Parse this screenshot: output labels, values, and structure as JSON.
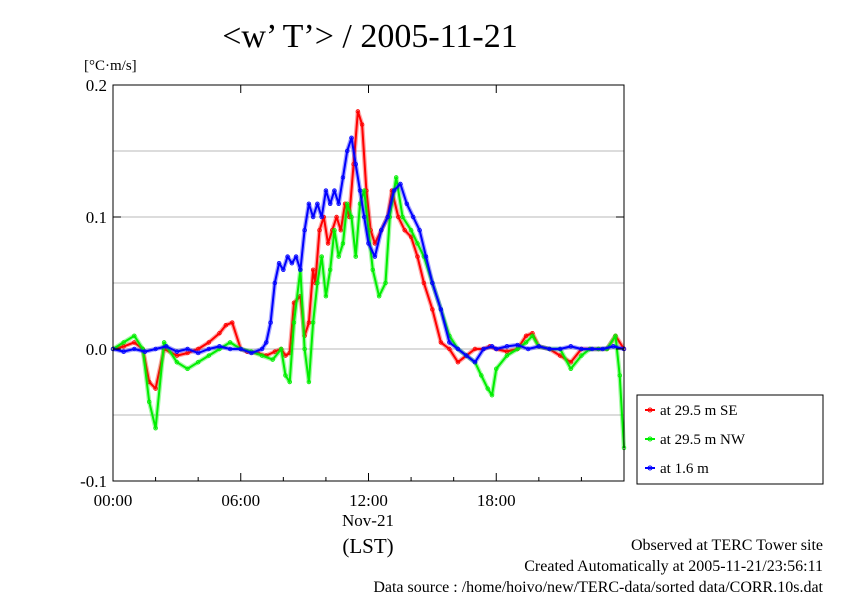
{
  "chart_data": {
    "type": "line",
    "title": "<w’ T’> / 2005-11-21",
    "ylabel": "[°C·m/s]",
    "xlabel": "(LST)",
    "xlim": [
      0,
      24
    ],
    "ylim": [
      -0.1,
      0.2
    ],
    "x_ticks": [
      {
        "value": 0,
        "label": "00:00"
      },
      {
        "value": 6,
        "label": "06:00"
      },
      {
        "value": 12,
        "label": "12:00"
      },
      {
        "value": 18,
        "label": "18:00"
      }
    ],
    "x_sublabel": {
      "value": 12,
      "label": "Nov-21"
    },
    "y_ticks": [
      {
        "value": -0.1,
        "label": "-0.1"
      },
      {
        "value": 0.0,
        "label": "0.0"
      },
      {
        "value": 0.1,
        "label": "0.1"
      },
      {
        "value": 0.2,
        "label": "0.2"
      }
    ],
    "y_gridlines": [
      -0.05,
      0.0,
      0.05,
      0.1,
      0.15
    ],
    "legend_position": "right-bottom",
    "series": [
      {
        "name": "at 29.5 m SE",
        "color": "#ff0000",
        "x": [
          0,
          0.5,
          1,
          1.4,
          1.7,
          2,
          2.4,
          3,
          3.5,
          4,
          4.5,
          5,
          5.3,
          5.6,
          6,
          6.3,
          6.8,
          7.2,
          7.6,
          7.9,
          8.1,
          8.3,
          8.5,
          8.8,
          9,
          9.2,
          9.4,
          9.5,
          9.7,
          9.9,
          10.1,
          10.3,
          10.5,
          10.7,
          10.9,
          11.1,
          11.3,
          11.5,
          11.7,
          11.9,
          12.1,
          12.3,
          12.6,
          12.9,
          13.1,
          13.4,
          13.7,
          14,
          14.3,
          14.6,
          15,
          15.4,
          15.8,
          16.2,
          16.6,
          17,
          17.4,
          17.7,
          18,
          18.5,
          19,
          19.4,
          19.7,
          20,
          20.5,
          21,
          21.5,
          22,
          22.4,
          22.8,
          23.2,
          23.6,
          24
        ],
        "y": [
          0.0,
          0.002,
          0.005,
          0.0,
          -0.025,
          -0.03,
          0.0,
          -0.005,
          -0.003,
          0.0,
          0.005,
          0.012,
          0.018,
          0.02,
          0.0,
          -0.002,
          -0.003,
          -0.005,
          -0.002,
          0.0,
          -0.005,
          -0.003,
          0.035,
          0.04,
          0.01,
          0.02,
          0.06,
          0.05,
          0.09,
          0.1,
          0.08,
          0.09,
          0.1,
          0.09,
          0.11,
          0.1,
          0.14,
          0.18,
          0.17,
          0.12,
          0.09,
          0.08,
          0.09,
          0.1,
          0.12,
          0.1,
          0.09,
          0.085,
          0.07,
          0.05,
          0.03,
          0.005,
          0.0,
          -0.01,
          -0.005,
          0.0,
          0.0,
          0.002,
          0.0,
          -0.002,
          0.0,
          0.01,
          0.012,
          0.002,
          0.0,
          -0.005,
          -0.01,
          0.0,
          0.0,
          0.0,
          0.0,
          0.01,
          0.0
        ]
      },
      {
        "name": "at 29.5 m NW",
        "color": "#00ee00",
        "x": [
          0,
          0.5,
          1,
          1.4,
          1.7,
          2,
          2.4,
          3,
          3.5,
          4,
          4.5,
          5,
          5.5,
          6,
          6.5,
          7,
          7.5,
          7.9,
          8.1,
          8.3,
          8.5,
          8.8,
          9,
          9.2,
          9.4,
          9.6,
          9.8,
          10,
          10.2,
          10.4,
          10.6,
          10.8,
          11,
          11.2,
          11.4,
          11.6,
          11.8,
          12,
          12.2,
          12.5,
          12.8,
          13,
          13.3,
          13.6,
          14,
          14.3,
          14.6,
          15,
          15.4,
          15.8,
          16.2,
          16.6,
          17,
          17.3,
          17.6,
          17.8,
          18,
          18.5,
          19,
          19.4,
          19.7,
          20,
          20.5,
          21,
          21.5,
          22,
          22.4,
          22.8,
          23.2,
          23.6,
          23.8,
          24
        ],
        "y": [
          0.0,
          0.005,
          0.01,
          0.0,
          -0.04,
          -0.06,
          0.005,
          -0.01,
          -0.015,
          -0.01,
          -0.005,
          0.0,
          0.005,
          0.0,
          -0.002,
          -0.005,
          -0.008,
          0.0,
          -0.02,
          -0.025,
          0.02,
          0.06,
          0.0,
          -0.025,
          0.02,
          0.05,
          0.07,
          0.04,
          0.06,
          0.09,
          0.07,
          0.08,
          0.11,
          0.1,
          0.07,
          0.11,
          0.12,
          0.09,
          0.06,
          0.04,
          0.05,
          0.1,
          0.13,
          0.1,
          0.09,
          0.08,
          0.07,
          0.05,
          0.03,
          0.01,
          0.0,
          -0.005,
          -0.01,
          -0.02,
          -0.03,
          -0.035,
          -0.015,
          -0.005,
          0.0,
          0.005,
          0.01,
          0.002,
          0.0,
          0.0,
          -0.015,
          -0.005,
          0.0,
          0.0,
          0.0,
          0.01,
          -0.02,
          -0.075
        ]
      },
      {
        "name": "at 1.6 m",
        "color": "#0000ff",
        "x": [
          0,
          0.5,
          1,
          1.5,
          2,
          2.5,
          3,
          3.5,
          4,
          4.5,
          5,
          5.5,
          6,
          6.5,
          7,
          7.2,
          7.4,
          7.6,
          7.8,
          8,
          8.2,
          8.4,
          8.6,
          8.8,
          9,
          9.2,
          9.4,
          9.6,
          9.8,
          10,
          10.2,
          10.4,
          10.6,
          10.8,
          11,
          11.2,
          11.4,
          11.6,
          11.8,
          12,
          12.3,
          12.6,
          12.9,
          13.2,
          13.5,
          13.8,
          14.1,
          14.4,
          14.7,
          15,
          15.4,
          15.8,
          16.2,
          16.6,
          17,
          17.4,
          17.8,
          18,
          18.5,
          19,
          19.5,
          20,
          20.5,
          21,
          21.5,
          22,
          22.5,
          23,
          23.5,
          24
        ],
        "y": [
          0.0,
          -0.002,
          0.0,
          -0.002,
          0.0,
          0.002,
          -0.002,
          0.0,
          -0.003,
          0.0,
          0.002,
          0.0,
          0.0,
          -0.003,
          0.0,
          0.005,
          0.02,
          0.05,
          0.065,
          0.06,
          0.07,
          0.065,
          0.07,
          0.06,
          0.09,
          0.11,
          0.1,
          0.11,
          0.1,
          0.12,
          0.11,
          0.12,
          0.11,
          0.13,
          0.15,
          0.16,
          0.14,
          0.12,
          0.1,
          0.08,
          0.07,
          0.09,
          0.1,
          0.12,
          0.125,
          0.11,
          0.1,
          0.09,
          0.07,
          0.05,
          0.03,
          0.005,
          0.0,
          -0.005,
          -0.01,
          0.0,
          0.002,
          0.0,
          0.002,
          0.003,
          0.0,
          0.002,
          0.0,
          0.0,
          0.002,
          0.0,
          0.0,
          0.0,
          0.002,
          0.0
        ]
      }
    ]
  },
  "footer": {
    "line1": "Observed at TERC Tower site",
    "line2": "Created Automatically at 2005-11-21/23:56:11",
    "line3": "Data source : /home/hoivo/new/TERC-data/sorted  data/CORR.10s.dat"
  }
}
